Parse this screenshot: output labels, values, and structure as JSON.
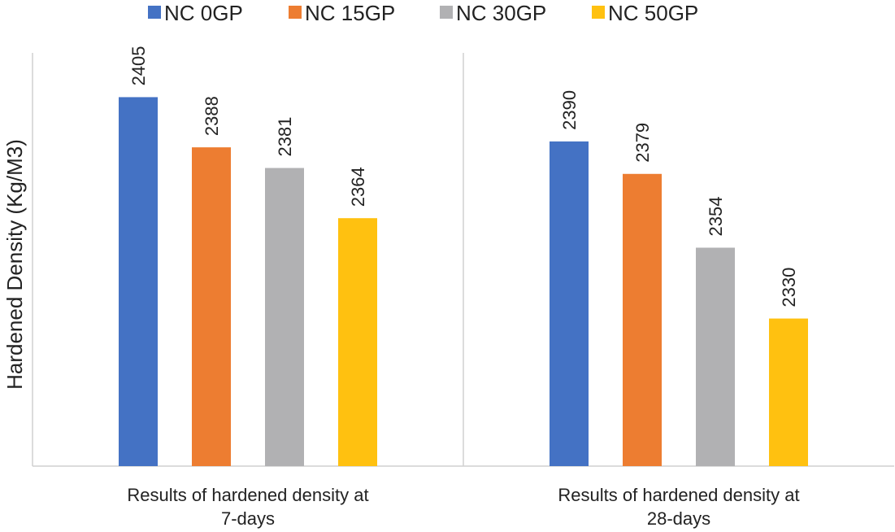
{
  "chart_data": {
    "type": "bar",
    "title": "",
    "xlabel": "",
    "ylabel": "Hardened Density (Kg/M3)",
    "categories": [
      [
        "Results of hardened density at",
        "7-days"
      ],
      [
        "Results of hardened density at",
        "28-days"
      ]
    ],
    "series": [
      {
        "name": "NC 0GP",
        "color": "#4472C4",
        "values": [
          2405,
          2390
        ]
      },
      {
        "name": "NC 15GP",
        "color": "#ED7D31",
        "values": [
          2388,
          2379
        ]
      },
      {
        "name": "NC 30GP",
        "color": "#B1B1B3",
        "values": [
          2381,
          2354
        ]
      },
      {
        "name": "NC 50GP",
        "color": "#FFC110",
        "values": [
          2364,
          2330
        ]
      }
    ],
    "ylim": [
      2280,
      2420
    ],
    "grid": false,
    "legend_position": "top",
    "data_labels": true
  }
}
